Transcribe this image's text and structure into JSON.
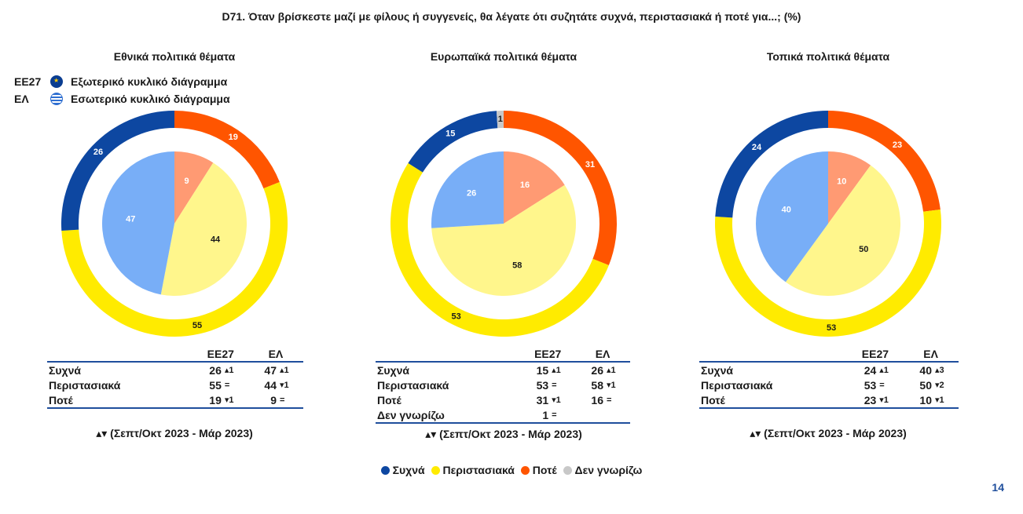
{
  "title": "D71. Όταν βρίσκεστε μαζί με φίλους ή συγγενείς, θα λέγατε ότι συζητάτε συχνά, περιστασιακά ή ποτέ για...; (%)",
  "legend_keys": [
    {
      "code": "ΕΕ27",
      "label": "Εξωτερικό κυκλικό διάγραμμα",
      "icon": "eu-flag-icon"
    },
    {
      "code": "ΕΛ",
      "label": "Εσωτερικό κυκλικό διάγραμμα",
      "icon": "greek-flag-icon"
    }
  ],
  "table_headers": {
    "eu": "ΕΕ27",
    "gr": "ΕΛ"
  },
  "trend_note": "▴▾ (Σεπτ/Οκτ 2023 - Μάρ 2023)",
  "bottom_legend": [
    {
      "label": "Συχνά",
      "color": "#0d47a1"
    },
    {
      "label": "Περιστασιακά",
      "color": "#ffeb00"
    },
    {
      "label": "Ποτέ",
      "color": "#ff5500"
    },
    {
      "label": "Δεν γνωρίζω",
      "color": "#c8c8c8"
    }
  ],
  "page_number": "14",
  "colors": {
    "outer": {
      "Συχνά": "#0d47a1",
      "Περιστασιακά": "#ffeb00",
      "Ποτέ": "#ff5500",
      "Δεν γνωρίζω": "#c8c8c8"
    },
    "inner": {
      "Συχνά": "#78aef7",
      "Περιστασιακά": "#fff68c",
      "Ποτέ": "#ff9a73",
      "Δεν γνωρίζω": "#dddddd"
    }
  },
  "chart_data": [
    {
      "type": "pie",
      "title": "Εθνικά πολιτικά θέματα",
      "categories": [
        "Συχνά",
        "Περιστασιακά",
        "Ποτέ"
      ],
      "series": [
        {
          "name": "ΕΕ27",
          "ring": "outer",
          "values": [
            26,
            55,
            19
          ]
        },
        {
          "name": "ΕΛ",
          "ring": "inner",
          "values": [
            47,
            44,
            9
          ]
        }
      ],
      "table": [
        {
          "label": "Συχνά",
          "eu": "26",
          "eu_trend": "▴1",
          "gr": "47",
          "gr_trend": "▴1"
        },
        {
          "label": "Περιστασιακά",
          "eu": "55",
          "eu_trend": "=",
          "gr": "44",
          "gr_trend": "▾1"
        },
        {
          "label": "Ποτέ",
          "eu": "19",
          "eu_trend": "▾1",
          "gr": "9",
          "gr_trend": "="
        }
      ]
    },
    {
      "type": "pie",
      "title": "Ευρωπαϊκά πολιτικά θέματα",
      "categories": [
        "Συχνά",
        "Περιστασιακά",
        "Ποτέ",
        "Δεν γνωρίζω"
      ],
      "series": [
        {
          "name": "ΕΕ27",
          "ring": "outer",
          "values": [
            15,
            53,
            31,
            1
          ]
        },
        {
          "name": "ΕΛ",
          "ring": "inner",
          "values": [
            26,
            58,
            16,
            0
          ]
        }
      ],
      "table": [
        {
          "label": "Συχνά",
          "eu": "15",
          "eu_trend": "▴1",
          "gr": "26",
          "gr_trend": "▴1"
        },
        {
          "label": "Περιστασιακά",
          "eu": "53",
          "eu_trend": "=",
          "gr": "58",
          "gr_trend": "▾1"
        },
        {
          "label": "Ποτέ",
          "eu": "31",
          "eu_trend": "▾1",
          "gr": "16",
          "gr_trend": "="
        },
        {
          "label": "Δεν γνωρίζω",
          "eu": "1",
          "eu_trend": "=",
          "gr": "",
          "gr_trend": ""
        }
      ]
    },
    {
      "type": "pie",
      "title": "Τοπικά πολιτικά θέματα",
      "categories": [
        "Συχνά",
        "Περιστασιακά",
        "Ποτέ"
      ],
      "series": [
        {
          "name": "ΕΕ27",
          "ring": "outer",
          "values": [
            24,
            53,
            23
          ]
        },
        {
          "name": "ΕΛ",
          "ring": "inner",
          "values": [
            40,
            50,
            10
          ]
        }
      ],
      "table": [
        {
          "label": "Συχνά",
          "eu": "24",
          "eu_trend": "▴1",
          "gr": "40",
          "gr_trend": "▴3"
        },
        {
          "label": "Περιστασιακά",
          "eu": "53",
          "eu_trend": "=",
          "gr": "50",
          "gr_trend": "▾2"
        },
        {
          "label": "Ποτέ",
          "eu": "23",
          "eu_trend": "▾1",
          "gr": "10",
          "gr_trend": "▾1"
        }
      ]
    }
  ]
}
